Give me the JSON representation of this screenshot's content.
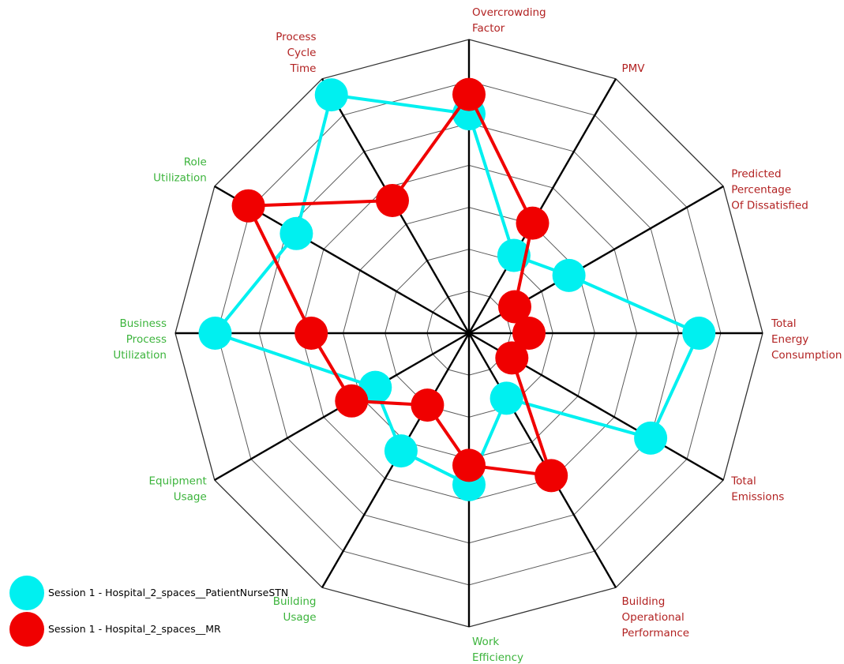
{
  "chart_data": {
    "type": "radar",
    "levels": 7,
    "axes": [
      {
        "label": [
          "Overcrowding",
          "Factor"
        ],
        "color": "#b22222"
      },
      {
        "label": [
          "PMV"
        ],
        "color": "#b22222"
      },
      {
        "label": [
          "Predicted",
          "Percentage",
          "Of Dissatisfied"
        ],
        "color": "#b22222"
      },
      {
        "label": [
          "Total",
          "Energy",
          "Consumption"
        ],
        "color": "#b22222"
      },
      {
        "label": [
          "Total",
          "Emissions"
        ],
        "color": "#b22222"
      },
      {
        "label": [
          "Building",
          "Operational",
          "Performance"
        ],
        "color": "#b22222"
      },
      {
        "label": [
          "Work",
          "Efficiency"
        ],
        "color": "#3cb43c"
      },
      {
        "label": [
          "Building",
          "Usage"
        ],
        "color": "#3cb43c"
      },
      {
        "label": [
          "Equipment",
          "Usage"
        ],
        "color": "#3cb43c"
      },
      {
        "label": [
          "Business",
          "Process",
          "Utilization"
        ],
        "color": "#3cb43c"
      },
      {
        "label": [
          "Role",
          "Utilization"
        ],
        "color": "#3cb43c"
      },
      {
        "label": [
          "Process",
          "Cycle",
          "Time"
        ],
        "color": "#b22222"
      }
    ],
    "series": [
      {
        "name": "Session 1 - Hospital_2_spaces__PatientNurseSTN",
        "color": "#00f0f0",
        "values": [
          5.23,
          2.14,
          2.75,
          5.48,
          5.0,
          1.79,
          3.61,
          3.24,
          2.58,
          6.05,
          4.75,
          6.56
        ]
      },
      {
        "name": "Session 1 - Hospital_2_spaces__MR",
        "color": "#f00000",
        "values": [
          5.69,
          3.03,
          1.26,
          1.43,
          1.18,
          3.92,
          3.15,
          1.98,
          3.23,
          3.76,
          6.07,
          3.65
        ]
      }
    ]
  }
}
